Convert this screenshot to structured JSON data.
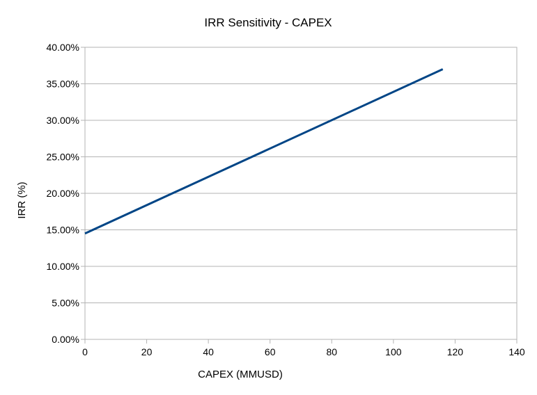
{
  "chart_data": {
    "type": "line",
    "title": "IRR Sensitivity - CAPEX",
    "xlabel": "CAPEX (MMUSD)",
    "ylabel": "IRR (%)",
    "xlim": [
      0,
      140
    ],
    "ylim": [
      0,
      0.4
    ],
    "x_ticks": [
      "0",
      "20",
      "40",
      "60",
      "80",
      "100",
      "120",
      "140"
    ],
    "y_ticks": [
      "0.00%",
      "5.00%",
      "10.00%",
      "15.00%",
      "20.00%",
      "25.00%",
      "30.00%",
      "35.00%",
      "40.00%"
    ],
    "grid": "horizontal",
    "series": [
      {
        "x": [
          0,
          116
        ],
        "y": [
          0.145,
          0.37
        ],
        "color": "#004586"
      }
    ]
  }
}
